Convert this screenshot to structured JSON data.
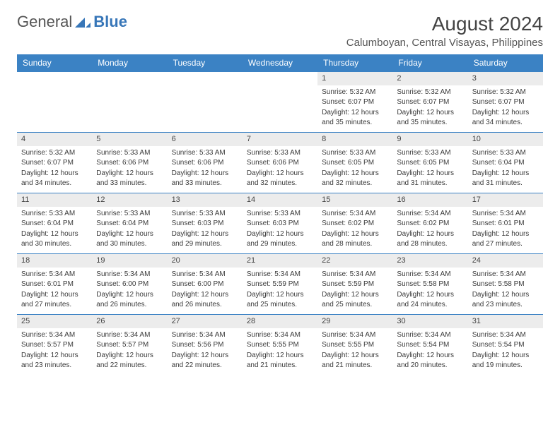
{
  "logo": {
    "text1": "General",
    "text2": "Blue"
  },
  "title": "August 2024",
  "location": "Calumboyan, Central Visayas, Philippines",
  "colors": {
    "header_bg": "#3b82c4",
    "header_text": "#ffffff",
    "daynum_bg": "#ececec",
    "row_border": "#3b82c4",
    "logo_blue": "#3776b8"
  },
  "weekdays": [
    "Sunday",
    "Monday",
    "Tuesday",
    "Wednesday",
    "Thursday",
    "Friday",
    "Saturday"
  ],
  "weeks": [
    [
      null,
      null,
      null,
      null,
      {
        "d": "1",
        "sr": "Sunrise: 5:32 AM",
        "ss": "Sunset: 6:07 PM",
        "dl1": "Daylight: 12 hours",
        "dl2": "and 35 minutes."
      },
      {
        "d": "2",
        "sr": "Sunrise: 5:32 AM",
        "ss": "Sunset: 6:07 PM",
        "dl1": "Daylight: 12 hours",
        "dl2": "and 35 minutes."
      },
      {
        "d": "3",
        "sr": "Sunrise: 5:32 AM",
        "ss": "Sunset: 6:07 PM",
        "dl1": "Daylight: 12 hours",
        "dl2": "and 34 minutes."
      }
    ],
    [
      {
        "d": "4",
        "sr": "Sunrise: 5:32 AM",
        "ss": "Sunset: 6:07 PM",
        "dl1": "Daylight: 12 hours",
        "dl2": "and 34 minutes."
      },
      {
        "d": "5",
        "sr": "Sunrise: 5:33 AM",
        "ss": "Sunset: 6:06 PM",
        "dl1": "Daylight: 12 hours",
        "dl2": "and 33 minutes."
      },
      {
        "d": "6",
        "sr": "Sunrise: 5:33 AM",
        "ss": "Sunset: 6:06 PM",
        "dl1": "Daylight: 12 hours",
        "dl2": "and 33 minutes."
      },
      {
        "d": "7",
        "sr": "Sunrise: 5:33 AM",
        "ss": "Sunset: 6:06 PM",
        "dl1": "Daylight: 12 hours",
        "dl2": "and 32 minutes."
      },
      {
        "d": "8",
        "sr": "Sunrise: 5:33 AM",
        "ss": "Sunset: 6:05 PM",
        "dl1": "Daylight: 12 hours",
        "dl2": "and 32 minutes."
      },
      {
        "d": "9",
        "sr": "Sunrise: 5:33 AM",
        "ss": "Sunset: 6:05 PM",
        "dl1": "Daylight: 12 hours",
        "dl2": "and 31 minutes."
      },
      {
        "d": "10",
        "sr": "Sunrise: 5:33 AM",
        "ss": "Sunset: 6:04 PM",
        "dl1": "Daylight: 12 hours",
        "dl2": "and 31 minutes."
      }
    ],
    [
      {
        "d": "11",
        "sr": "Sunrise: 5:33 AM",
        "ss": "Sunset: 6:04 PM",
        "dl1": "Daylight: 12 hours",
        "dl2": "and 30 minutes."
      },
      {
        "d": "12",
        "sr": "Sunrise: 5:33 AM",
        "ss": "Sunset: 6:04 PM",
        "dl1": "Daylight: 12 hours",
        "dl2": "and 30 minutes."
      },
      {
        "d": "13",
        "sr": "Sunrise: 5:33 AM",
        "ss": "Sunset: 6:03 PM",
        "dl1": "Daylight: 12 hours",
        "dl2": "and 29 minutes."
      },
      {
        "d": "14",
        "sr": "Sunrise: 5:33 AM",
        "ss": "Sunset: 6:03 PM",
        "dl1": "Daylight: 12 hours",
        "dl2": "and 29 minutes."
      },
      {
        "d": "15",
        "sr": "Sunrise: 5:34 AM",
        "ss": "Sunset: 6:02 PM",
        "dl1": "Daylight: 12 hours",
        "dl2": "and 28 minutes."
      },
      {
        "d": "16",
        "sr": "Sunrise: 5:34 AM",
        "ss": "Sunset: 6:02 PM",
        "dl1": "Daylight: 12 hours",
        "dl2": "and 28 minutes."
      },
      {
        "d": "17",
        "sr": "Sunrise: 5:34 AM",
        "ss": "Sunset: 6:01 PM",
        "dl1": "Daylight: 12 hours",
        "dl2": "and 27 minutes."
      }
    ],
    [
      {
        "d": "18",
        "sr": "Sunrise: 5:34 AM",
        "ss": "Sunset: 6:01 PM",
        "dl1": "Daylight: 12 hours",
        "dl2": "and 27 minutes."
      },
      {
        "d": "19",
        "sr": "Sunrise: 5:34 AM",
        "ss": "Sunset: 6:00 PM",
        "dl1": "Daylight: 12 hours",
        "dl2": "and 26 minutes."
      },
      {
        "d": "20",
        "sr": "Sunrise: 5:34 AM",
        "ss": "Sunset: 6:00 PM",
        "dl1": "Daylight: 12 hours",
        "dl2": "and 26 minutes."
      },
      {
        "d": "21",
        "sr": "Sunrise: 5:34 AM",
        "ss": "Sunset: 5:59 PM",
        "dl1": "Daylight: 12 hours",
        "dl2": "and 25 minutes."
      },
      {
        "d": "22",
        "sr": "Sunrise: 5:34 AM",
        "ss": "Sunset: 5:59 PM",
        "dl1": "Daylight: 12 hours",
        "dl2": "and 25 minutes."
      },
      {
        "d": "23",
        "sr": "Sunrise: 5:34 AM",
        "ss": "Sunset: 5:58 PM",
        "dl1": "Daylight: 12 hours",
        "dl2": "and 24 minutes."
      },
      {
        "d": "24",
        "sr": "Sunrise: 5:34 AM",
        "ss": "Sunset: 5:58 PM",
        "dl1": "Daylight: 12 hours",
        "dl2": "and 23 minutes."
      }
    ],
    [
      {
        "d": "25",
        "sr": "Sunrise: 5:34 AM",
        "ss": "Sunset: 5:57 PM",
        "dl1": "Daylight: 12 hours",
        "dl2": "and 23 minutes."
      },
      {
        "d": "26",
        "sr": "Sunrise: 5:34 AM",
        "ss": "Sunset: 5:57 PM",
        "dl1": "Daylight: 12 hours",
        "dl2": "and 22 minutes."
      },
      {
        "d": "27",
        "sr": "Sunrise: 5:34 AM",
        "ss": "Sunset: 5:56 PM",
        "dl1": "Daylight: 12 hours",
        "dl2": "and 22 minutes."
      },
      {
        "d": "28",
        "sr": "Sunrise: 5:34 AM",
        "ss": "Sunset: 5:55 PM",
        "dl1": "Daylight: 12 hours",
        "dl2": "and 21 minutes."
      },
      {
        "d": "29",
        "sr": "Sunrise: 5:34 AM",
        "ss": "Sunset: 5:55 PM",
        "dl1": "Daylight: 12 hours",
        "dl2": "and 21 minutes."
      },
      {
        "d": "30",
        "sr": "Sunrise: 5:34 AM",
        "ss": "Sunset: 5:54 PM",
        "dl1": "Daylight: 12 hours",
        "dl2": "and 20 minutes."
      },
      {
        "d": "31",
        "sr": "Sunrise: 5:34 AM",
        "ss": "Sunset: 5:54 PM",
        "dl1": "Daylight: 12 hours",
        "dl2": "and 19 minutes."
      }
    ]
  ]
}
